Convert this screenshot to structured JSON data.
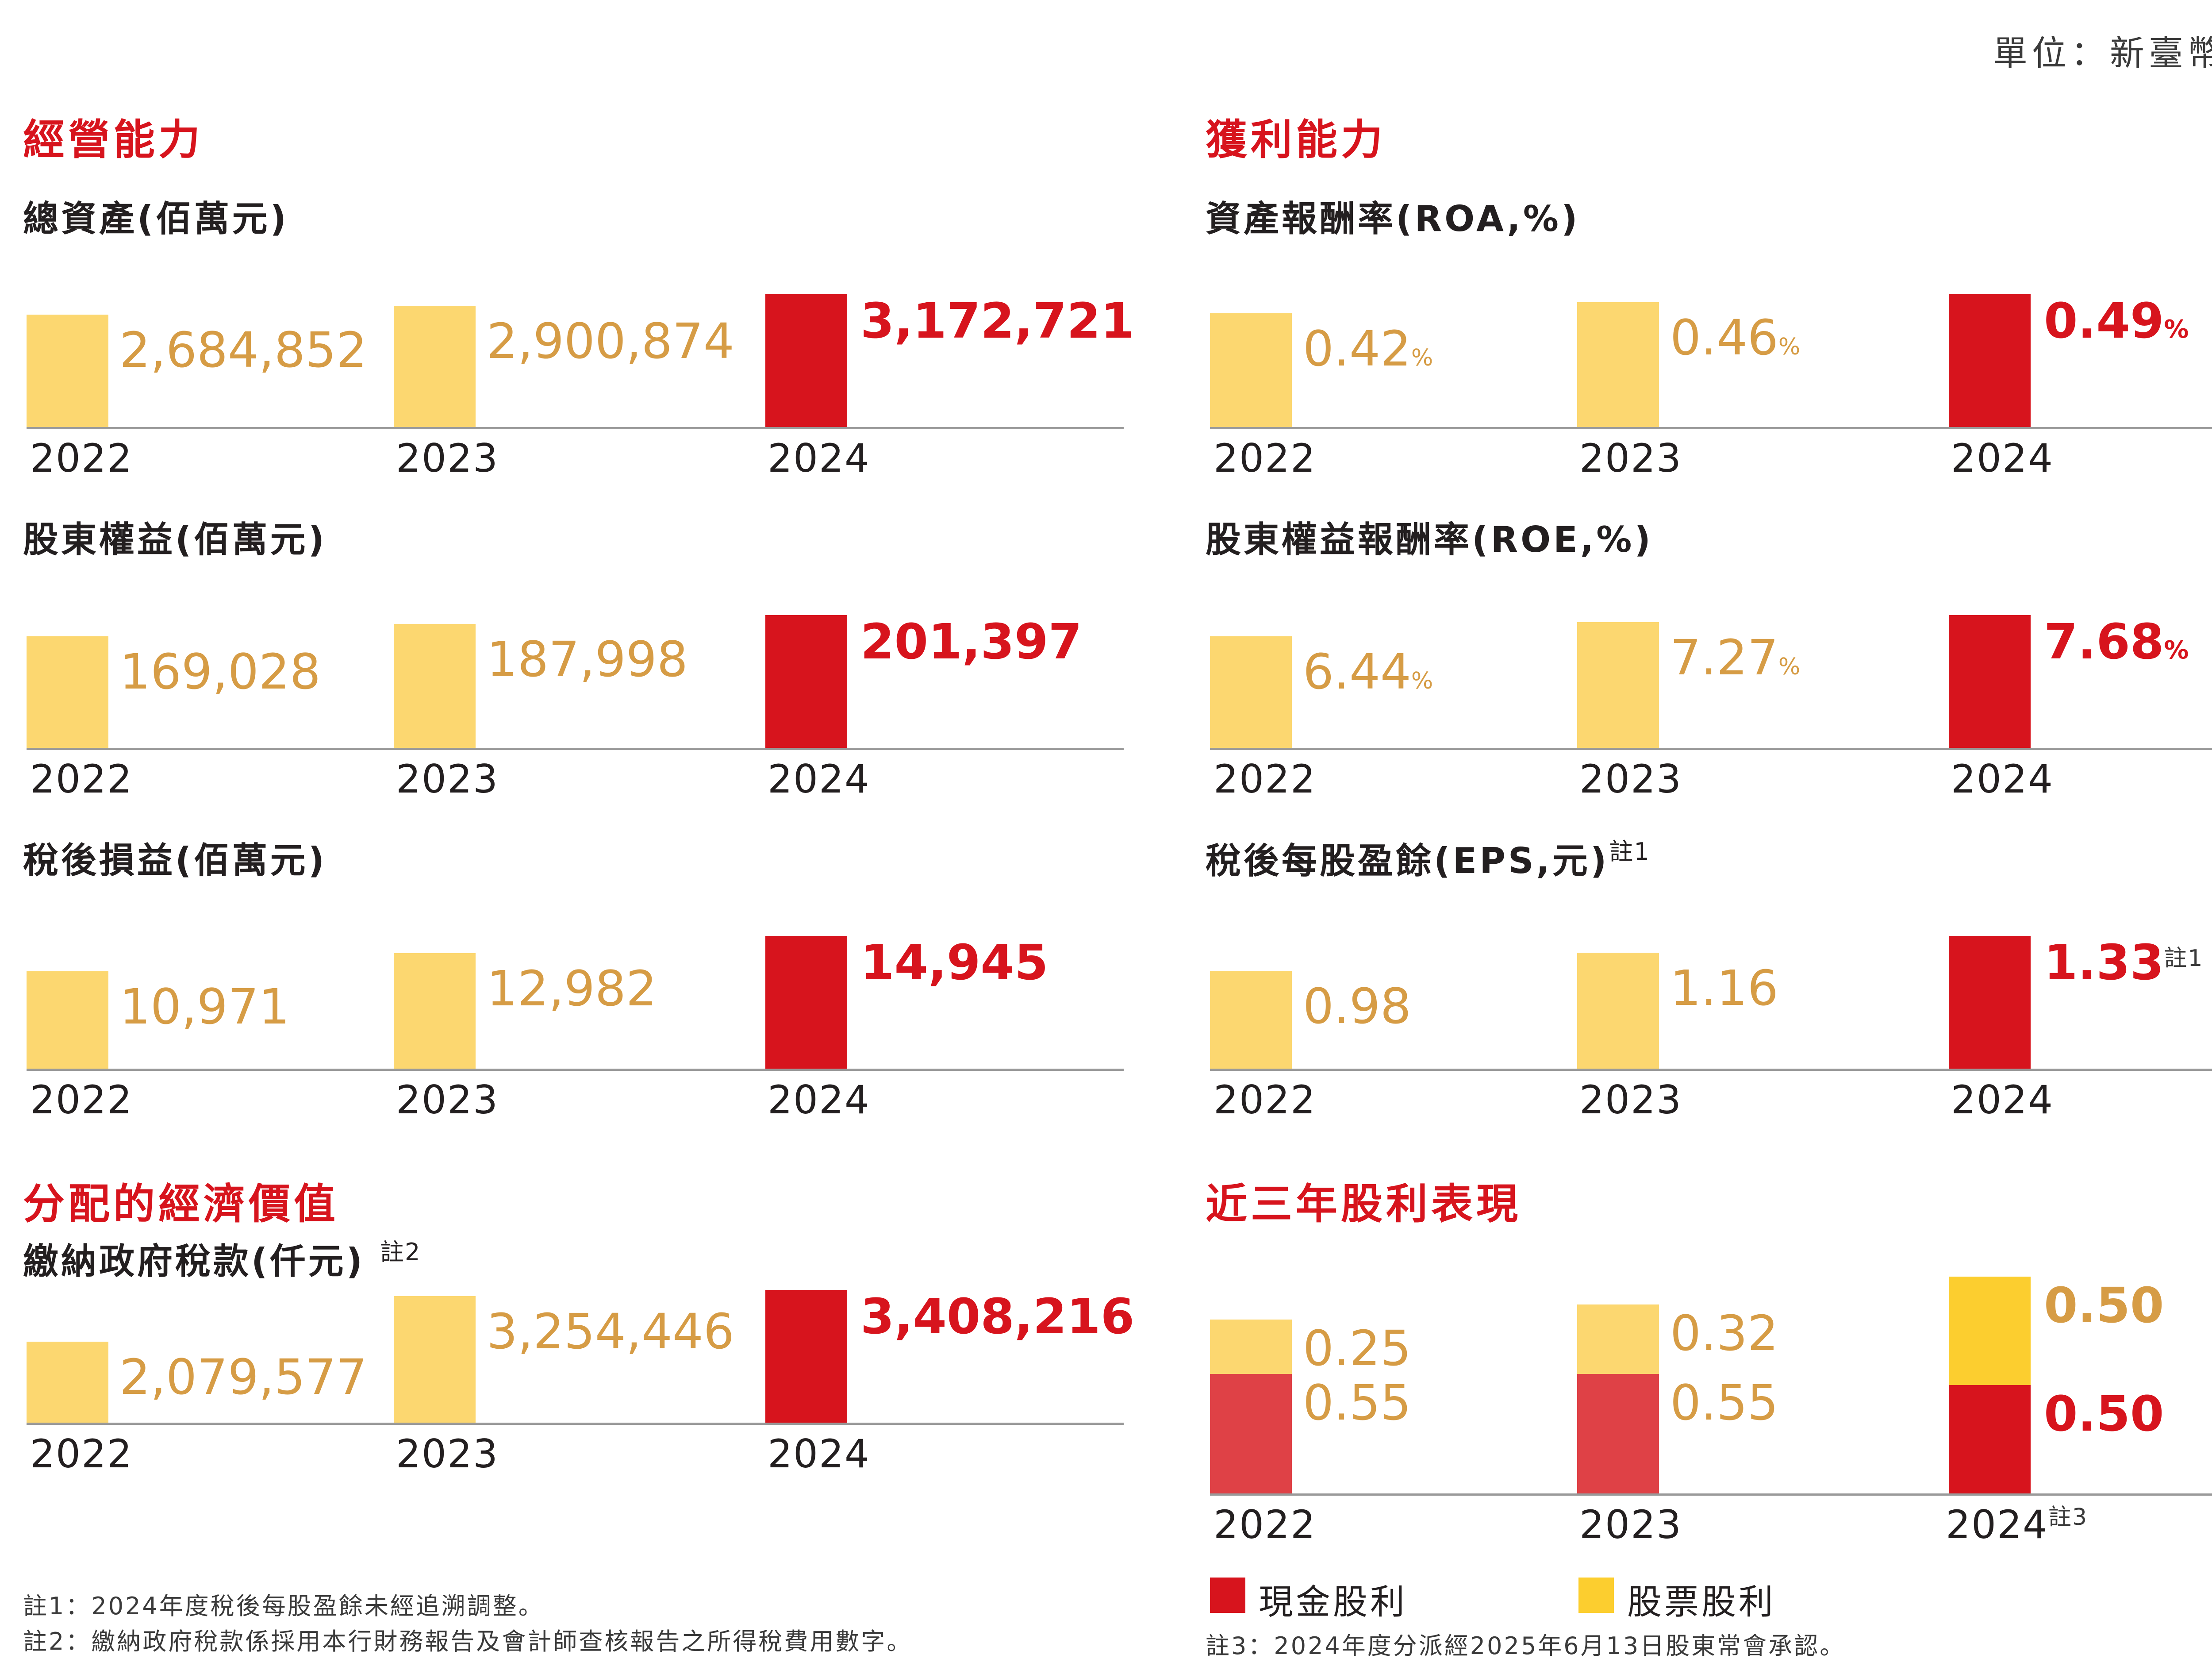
{
  "unit_label": "單位：新臺幣；%",
  "sections": {
    "operating": "經營能力",
    "profit": "獲利能力",
    "distributed": "分配的經濟價值",
    "dividends": "近三年股利表現"
  },
  "colors": {
    "red": "#d7141d",
    "yellow": "#fcd770",
    "gold_text": "#d69c45",
    "stock_yellow": "#fcce2f",
    "cash_light_red": "#df4146"
  },
  "chart_data": [
    {
      "id": "total_assets",
      "type": "bar",
      "title": "總資產(佰萬元)",
      "categories": [
        "2022",
        "2023",
        "2024"
      ],
      "values": [
        2684852,
        2900874,
        3172721
      ],
      "labels": [
        "2,684,852",
        "2,900,874",
        "3,172,721"
      ],
      "ylim": [
        0,
        3172721
      ]
    },
    {
      "id": "equity",
      "type": "bar",
      "title": "股東權益(佰萬元)",
      "categories": [
        "2022",
        "2023",
        "2024"
      ],
      "values": [
        169028,
        187998,
        201397
      ],
      "labels": [
        "169,028",
        "187,998",
        "201,397"
      ],
      "ylim": [
        0,
        201397
      ]
    },
    {
      "id": "net_income",
      "type": "bar",
      "title": "稅後損益(佰萬元)",
      "categories": [
        "2022",
        "2023",
        "2024"
      ],
      "values": [
        10971,
        12982,
        14945
      ],
      "labels": [
        "10,971",
        "12,982",
        "14,945"
      ],
      "ylim": [
        0,
        14945
      ]
    },
    {
      "id": "taxes",
      "type": "bar",
      "title": "繳納政府稅款(仟元)",
      "title_note": "註2",
      "categories": [
        "2022",
        "2023",
        "2024"
      ],
      "values": [
        2079577,
        3254446,
        3408216
      ],
      "labels": [
        "2,079,577",
        "3,254,446",
        "3,408,216"
      ],
      "ylim": [
        0,
        3408216
      ]
    },
    {
      "id": "roa",
      "type": "bar",
      "title": "資產報酬率(ROA,%)",
      "categories": [
        "2022",
        "2023",
        "2024"
      ],
      "values": [
        0.42,
        0.46,
        0.49
      ],
      "labels": [
        "0.42",
        "0.46",
        "0.49"
      ],
      "suffix": "%",
      "ylim": [
        0,
        0.49
      ]
    },
    {
      "id": "roe",
      "type": "bar",
      "title": "股東權益報酬率(ROE,%)",
      "categories": [
        "2022",
        "2023",
        "2024"
      ],
      "values": [
        6.44,
        7.27,
        7.68
      ],
      "labels": [
        "6.44",
        "7.27",
        "7.68"
      ],
      "suffix": "%",
      "ylim": [
        0,
        7.68
      ]
    },
    {
      "id": "eps",
      "type": "bar",
      "title": "稅後每股盈餘(EPS,元)",
      "title_note": "註1",
      "value_note": "註1",
      "categories": [
        "2022",
        "2023",
        "2024"
      ],
      "values": [
        0.98,
        1.16,
        1.33
      ],
      "labels": [
        "0.98",
        "1.16",
        "1.33"
      ],
      "ylim": [
        0,
        1.33
      ]
    },
    {
      "id": "dividends",
      "type": "bar",
      "stacked": true,
      "title": "近三年股利表現",
      "categories": [
        "2022",
        "2023",
        "2024"
      ],
      "year_note": "註3",
      "series": [
        {
          "name": "現金股利",
          "values": [
            0.55,
            0.55,
            0.5
          ],
          "labels": [
            "0.55",
            "0.55",
            "0.50"
          ]
        },
        {
          "name": "股票股利",
          "values": [
            0.25,
            0.32,
            0.5
          ],
          "labels": [
            "0.25",
            "0.32",
            "0.50"
          ]
        }
      ],
      "ylim": [
        0,
        1.0
      ]
    }
  ],
  "notes": {
    "n1": "註1：2024年度稅後每股盈餘未經追溯調整。",
    "n2": "註2：繳納政府稅款係採用本行財務報告及會計師查核報告之所得稅費用數字。",
    "n3": "註3：2024年度分派經2025年6月13日股東常會承認。"
  }
}
